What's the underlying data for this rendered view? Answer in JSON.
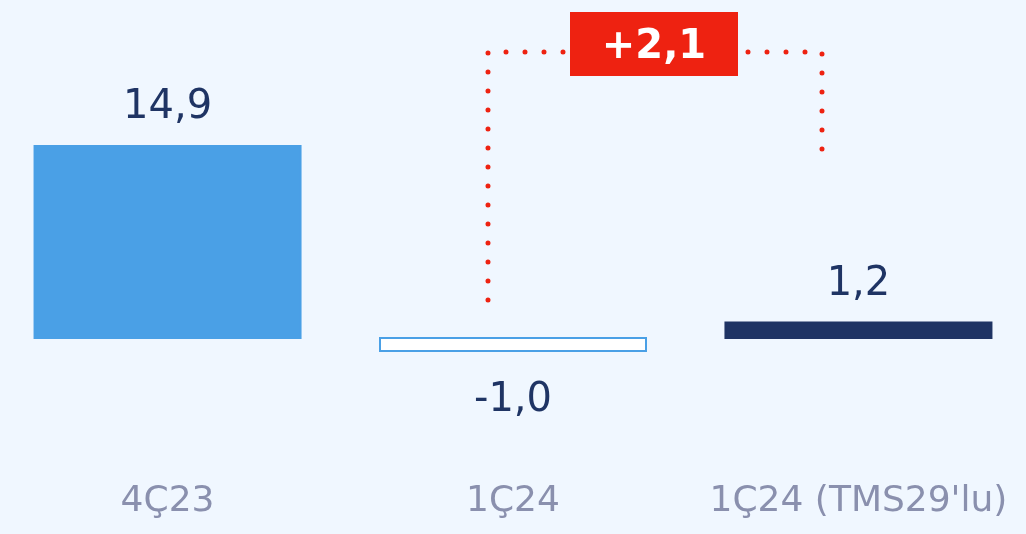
{
  "chart_data": {
    "type": "bar",
    "categories": [
      "4Ç23",
      "1Ç24",
      "1Ç24 (TMS29'lu)"
    ],
    "values": [
      14.9,
      -1.0,
      1.2
    ],
    "colors": [
      "#4aa0e6",
      "#ffffff",
      "#1f3464"
    ],
    "value_labels": [
      "14,9",
      "-1,0",
      "1,2"
    ],
    "annotations": [
      "+2,1"
    ]
  }
}
